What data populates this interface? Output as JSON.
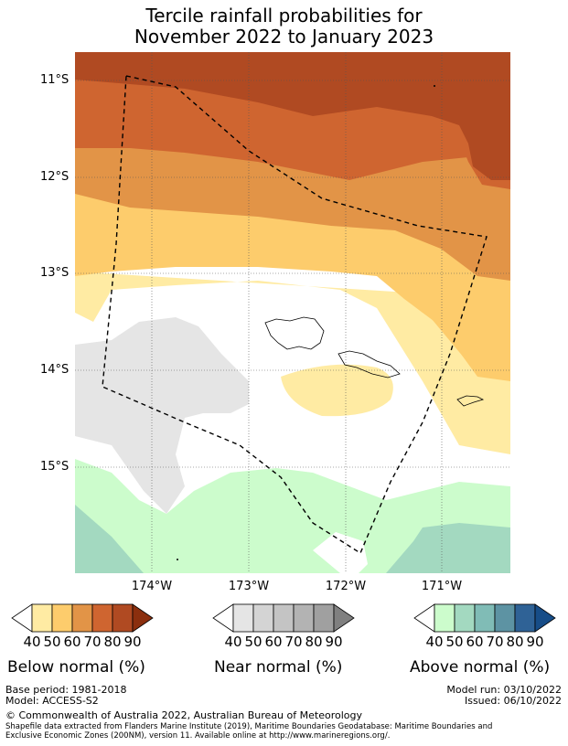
{
  "title": {
    "line1": "Tercile rainfall probabilities for",
    "line2": "November 2022 to January 2023"
  },
  "map": {
    "lat_labels": [
      "11°S",
      "12°S",
      "13°S",
      "14°S",
      "15°S"
    ],
    "lon_labels": [
      "174°W",
      "173°W",
      "172°W",
      "171°W"
    ],
    "colors": {
      "below_90": "#8b2f0e",
      "below_80": "#b04a22",
      "below_70": "#cf6530",
      "below_60": "#e29447",
      "below_50": "#fdcc6c",
      "below_40": "#ffeba3",
      "near_40": "#e5e5e5",
      "above_40": "#ccfccc",
      "above_50": "#a3d9c0"
    }
  },
  "legend": {
    "below": {
      "label": "Below normal (%)",
      "ticks": [
        "40",
        "50",
        "60",
        "70",
        "80",
        "90"
      ],
      "colors": [
        "#ffeba3",
        "#fdcc6c",
        "#e29447",
        "#cf6530",
        "#b04a22",
        "#8b2f0e"
      ]
    },
    "near": {
      "label": "Near normal (%)",
      "ticks": [
        "40",
        "50",
        "60",
        "70",
        "80",
        "90"
      ],
      "colors": [
        "#e5e5e5",
        "#d4d4d4",
        "#c4c4c4",
        "#b3b3b3",
        "#a0a0a0",
        "#808080"
      ]
    },
    "above": {
      "label": "Above normal (%)",
      "ticks": [
        "40",
        "50",
        "60",
        "70",
        "80",
        "90"
      ],
      "colors": [
        "#ccfccc",
        "#a3d9c0",
        "#80bcb6",
        "#5d93a3",
        "#2f6296",
        "#174d88"
      ]
    }
  },
  "footer": {
    "base_period": "Base period: 1981-2018",
    "model": "Model: ACCESS-S2",
    "model_run": "Model run: 03/10/2022",
    "issued": "Issued: 06/10/2022",
    "copyright": "© Commonwealth of Australia 2022, Australian Bureau of Meteorology",
    "shapefile1": "Shapefile data extracted from Flanders Marine Institute (2019), Maritime Boundaries Geodatabase: Maritime Boundaries and",
    "shapefile2": "Exclusive Economic Zones (200NM), version 11. Available online at http://www.marineregions.org/."
  }
}
